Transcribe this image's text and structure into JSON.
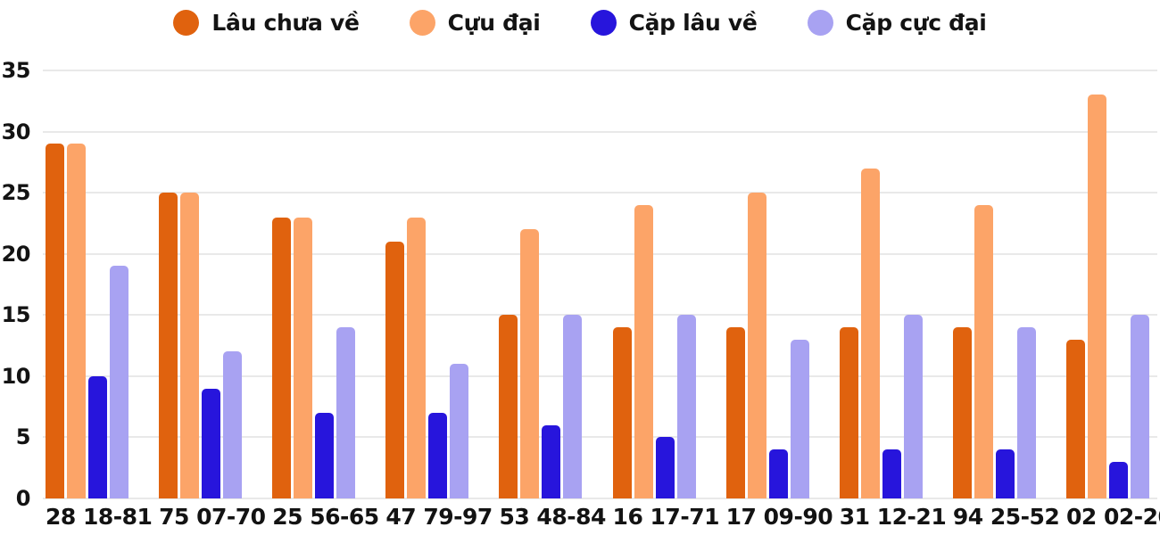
{
  "chart_data": {
    "type": "bar",
    "title": "",
    "xlabel": "",
    "ylabel": "",
    "categories": [
      "28 18-81",
      "75 07-70",
      "25 56-65",
      "47 79-97",
      "53 48-84",
      "16 17-71",
      "17 09-90",
      "31 12-21",
      "94 25-52",
      "02 02-20"
    ],
    "series": [
      {
        "name": "Lâu chưa về",
        "color": "#E0620E",
        "values": [
          29,
          25,
          23,
          21,
          15,
          14,
          14,
          14,
          14,
          13
        ]
      },
      {
        "name": "Cựu đại",
        "color": "#FCA468",
        "values": [
          29,
          25,
          23,
          23,
          22,
          24,
          25,
          27,
          24,
          33
        ]
      },
      {
        "name": "Cặp lâu về",
        "color": "#2715DC",
        "values": [
          10,
          9,
          7,
          7,
          6,
          5,
          4,
          4,
          4,
          3
        ]
      },
      {
        "name": "Cặp cực đại",
        "color": "#A8A2F2",
        "values": [
          19,
          12,
          14,
          11,
          15,
          15,
          13,
          15,
          14,
          15
        ]
      }
    ],
    "ylim": [
      0,
      35
    ],
    "yticks": [
      0,
      5,
      10,
      15,
      20,
      25,
      30,
      35
    ],
    "grid": true,
    "legend_position": "top",
    "colors": {
      "text": "#131313",
      "gridline": "#e9e9e9",
      "background": "#ffffff"
    }
  }
}
